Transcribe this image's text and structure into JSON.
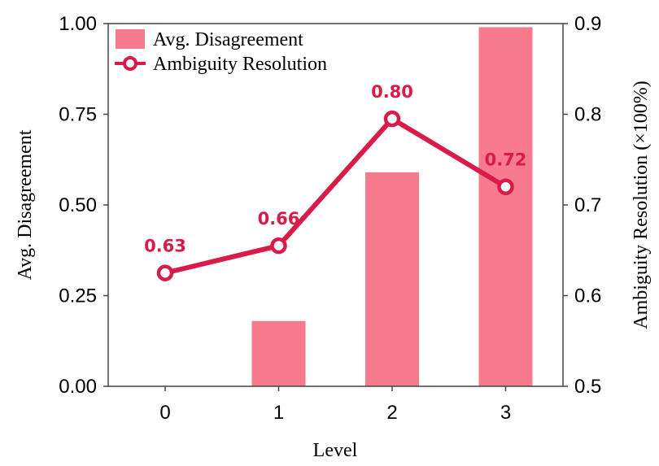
{
  "chart_data": {
    "type": "bar",
    "categories": [
      "0",
      "1",
      "2",
      "3"
    ],
    "xlabel": "Level",
    "series": [
      {
        "name": "Avg. Disagreement",
        "type": "bar",
        "axis": "left",
        "values": [
          0.0,
          0.18,
          0.59,
          0.99
        ],
        "color": "#f77a8d"
      },
      {
        "name": "Ambiguity Resolution",
        "type": "line",
        "axis": "right",
        "values": [
          0.625,
          0.655,
          0.795,
          0.72
        ],
        "labels": [
          "0.63",
          "0.66",
          "0.80",
          "0.72"
        ],
        "color": "#d81b48"
      }
    ],
    "left_axis": {
      "label": "Avg. Disagreement",
      "ylim": [
        0,
        1.0
      ],
      "ticks": [
        "0.00",
        "0.25",
        "0.50",
        "0.75",
        "1.00"
      ]
    },
    "right_axis": {
      "label": "Ambiguity Resolution (×100%)",
      "ylim": [
        0.5,
        0.9
      ],
      "ticks": [
        "0.5",
        "0.6",
        "0.7",
        "0.8",
        "0.9"
      ]
    },
    "legend_position": "top-left",
    "grid": false
  }
}
